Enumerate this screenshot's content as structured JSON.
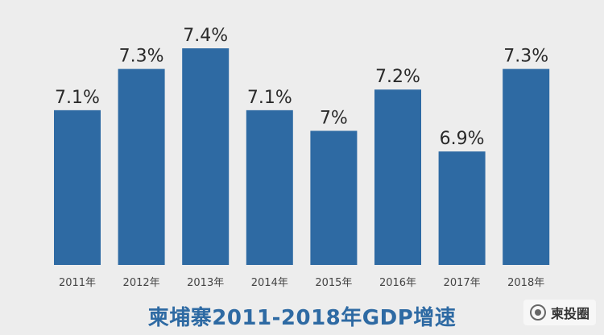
{
  "chart_data": {
    "type": "bar",
    "title": "柬埔寨2011-2018年GDP增速",
    "categories": [
      "2011年",
      "2012年",
      "2013年",
      "2014年",
      "2015年",
      "2016年",
      "2017年",
      "2018年"
    ],
    "values": [
      7.1,
      7.3,
      7.4,
      7.1,
      7.0,
      7.2,
      6.9,
      7.3
    ],
    "data_labels": [
      "7.1%",
      "7.3%",
      "7.4%",
      "7.1%",
      "7%",
      "7.2%",
      "6.9%",
      "7.3%"
    ],
    "xlabel": "",
    "ylabel": "",
    "ylim": [
      6.35,
      7.4
    ],
    "grid": false,
    "legend": "none",
    "bar_color": "#2e6aa3",
    "label_color": "#2a2a2a"
  },
  "watermark": {
    "text": "柬投圈",
    "icon": "wechat-channel-icon"
  }
}
